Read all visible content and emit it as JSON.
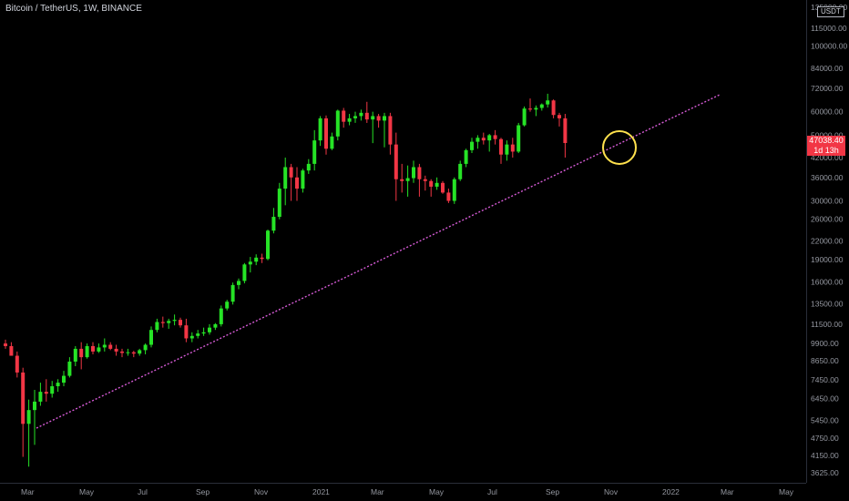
{
  "header": {
    "symbol": "Bitcoin / TetherUS, 1W, BINANCE"
  },
  "price_scale": {
    "currency": "USDT",
    "last_price": "47038.40",
    "countdown": "1d 13h"
  },
  "colors": {
    "up": "#26e326",
    "down": "#f23645",
    "trendline": "#d65bd6",
    "highlight_circle": "#ffe14d",
    "axis_text": "#9598a1",
    "background": "#000000"
  },
  "chart_data": {
    "type": "candlestick",
    "title": "Bitcoin / TetherUS, 1W, BINANCE",
    "y_scale": "log",
    "ylim": [
      3400,
      140000
    ],
    "yticks": [
      "135000.00",
      "115000.00",
      "100000.00",
      "84000.00",
      "72000.00",
      "60000.00",
      "50000.00",
      "42000.00",
      "36000.00",
      "30000.00",
      "26000.00",
      "22000.00",
      "19000.00",
      "16000.00",
      "13500.00",
      "11500.00",
      "9900.00",
      "8650.00",
      "7450.00",
      "6450.00",
      "5450.00",
      "4750.00",
      "4150.00",
      "3625.00"
    ],
    "x_ticks": [
      "Mar",
      "May",
      "Jul",
      "Sep",
      "Nov",
      "2021",
      "Mar",
      "May",
      "Jul",
      "Sep",
      "Nov",
      "2022",
      "Mar",
      "May"
    ],
    "candles": [
      {
        "o": 9900,
        "h": 10200,
        "l": 9500,
        "c": 9700
      },
      {
        "o": 9700,
        "h": 10000,
        "l": 9100,
        "c": 9000
      },
      {
        "o": 9000,
        "h": 9300,
        "l": 7600,
        "c": 7900
      },
      {
        "o": 7900,
        "h": 8200,
        "l": 4100,
        "c": 5300
      },
      {
        "o": 5300,
        "h": 6400,
        "l": 3800,
        "c": 5900
      },
      {
        "o": 5900,
        "h": 6900,
        "l": 4500,
        "c": 6300
      },
      {
        "o": 6300,
        "h": 7300,
        "l": 6100,
        "c": 6800
      },
      {
        "o": 6800,
        "h": 7500,
        "l": 6300,
        "c": 6700
      },
      {
        "o": 6700,
        "h": 7400,
        "l": 6500,
        "c": 7100
      },
      {
        "o": 7100,
        "h": 7500,
        "l": 6800,
        "c": 7300
      },
      {
        "o": 7300,
        "h": 8000,
        "l": 7100,
        "c": 7700
      },
      {
        "o": 7700,
        "h": 8900,
        "l": 7600,
        "c": 8600
      },
      {
        "o": 8600,
        "h": 9700,
        "l": 8300,
        "c": 9500
      },
      {
        "o": 9500,
        "h": 10000,
        "l": 8100,
        "c": 8900
      },
      {
        "o": 8900,
        "h": 9900,
        "l": 8800,
        "c": 9700
      },
      {
        "o": 9700,
        "h": 10000,
        "l": 9100,
        "c": 9300
      },
      {
        "o": 9300,
        "h": 9900,
        "l": 9200,
        "c": 9600
      },
      {
        "o": 9600,
        "h": 10300,
        "l": 9300,
        "c": 9800
      },
      {
        "o": 9800,
        "h": 10000,
        "l": 9400,
        "c": 9500
      },
      {
        "o": 9500,
        "h": 9800,
        "l": 9000,
        "c": 9300
      },
      {
        "o": 9300,
        "h": 9500,
        "l": 8900,
        "c": 9200
      },
      {
        "o": 9200,
        "h": 9500,
        "l": 9000,
        "c": 9250
      },
      {
        "o": 9250,
        "h": 9350,
        "l": 8900,
        "c": 9150
      },
      {
        "o": 9150,
        "h": 9500,
        "l": 9000,
        "c": 9400
      },
      {
        "o": 9400,
        "h": 9900,
        "l": 9100,
        "c": 9800
      },
      {
        "o": 9800,
        "h": 11300,
        "l": 9600,
        "c": 11000
      },
      {
        "o": 11000,
        "h": 12000,
        "l": 10800,
        "c": 11700
      },
      {
        "o": 11700,
        "h": 12200,
        "l": 11200,
        "c": 11600
      },
      {
        "o": 11600,
        "h": 12000,
        "l": 11100,
        "c": 11800
      },
      {
        "o": 11800,
        "h": 12400,
        "l": 11400,
        "c": 11900
      },
      {
        "o": 11900,
        "h": 12100,
        "l": 11200,
        "c": 11400
      },
      {
        "o": 11400,
        "h": 12000,
        "l": 10000,
        "c": 10300
      },
      {
        "o": 10300,
        "h": 10800,
        "l": 10000,
        "c": 10500
      },
      {
        "o": 10500,
        "h": 11000,
        "l": 10300,
        "c": 10700
      },
      {
        "o": 10700,
        "h": 11200,
        "l": 10500,
        "c": 10800
      },
      {
        "o": 10800,
        "h": 11500,
        "l": 10600,
        "c": 11200
      },
      {
        "o": 11200,
        "h": 11600,
        "l": 11000,
        "c": 11500
      },
      {
        "o": 11500,
        "h": 13300,
        "l": 11300,
        "c": 13000
      },
      {
        "o": 13000,
        "h": 13900,
        "l": 12800,
        "c": 13700
      },
      {
        "o": 13700,
        "h": 15900,
        "l": 13400,
        "c": 15600
      },
      {
        "o": 15600,
        "h": 16400,
        "l": 15100,
        "c": 16100
      },
      {
        "o": 16100,
        "h": 18500,
        "l": 15800,
        "c": 18300
      },
      {
        "o": 18300,
        "h": 19400,
        "l": 17200,
        "c": 18700
      },
      {
        "o": 18700,
        "h": 19800,
        "l": 18200,
        "c": 19300
      },
      {
        "o": 19300,
        "h": 19900,
        "l": 18500,
        "c": 19100
      },
      {
        "o": 19100,
        "h": 24000,
        "l": 18900,
        "c": 23800
      },
      {
        "o": 23800,
        "h": 28400,
        "l": 23300,
        "c": 26500
      },
      {
        "o": 26500,
        "h": 34500,
        "l": 26000,
        "c": 33000
      },
      {
        "o": 33000,
        "h": 42000,
        "l": 29000,
        "c": 39000
      },
      {
        "o": 39000,
        "h": 40000,
        "l": 30000,
        "c": 36000
      },
      {
        "o": 36000,
        "h": 39000,
        "l": 30000,
        "c": 33000
      },
      {
        "o": 33000,
        "h": 38500,
        "l": 32000,
        "c": 38000
      },
      {
        "o": 38000,
        "h": 41500,
        "l": 37000,
        "c": 40000
      },
      {
        "o": 40000,
        "h": 52000,
        "l": 38000,
        "c": 48000
      },
      {
        "o": 48000,
        "h": 58000,
        "l": 46000,
        "c": 57000
      },
      {
        "o": 57000,
        "h": 58300,
        "l": 43000,
        "c": 45000
      },
      {
        "o": 45000,
        "h": 51000,
        "l": 44500,
        "c": 49500
      },
      {
        "o": 49500,
        "h": 61000,
        "l": 48000,
        "c": 60500
      },
      {
        "o": 60500,
        "h": 61800,
        "l": 53000,
        "c": 55500
      },
      {
        "o": 55500,
        "h": 59000,
        "l": 54000,
        "c": 57000
      },
      {
        "o": 57000,
        "h": 60000,
        "l": 55000,
        "c": 58000
      },
      {
        "o": 58000,
        "h": 61000,
        "l": 56000,
        "c": 59500
      },
      {
        "o": 59500,
        "h": 64800,
        "l": 55000,
        "c": 56500
      },
      {
        "o": 56500,
        "h": 60000,
        "l": 47000,
        "c": 58000
      },
      {
        "o": 58000,
        "h": 59000,
        "l": 53000,
        "c": 56000
      },
      {
        "o": 56000,
        "h": 59500,
        "l": 45500,
        "c": 58000
      },
      {
        "o": 58000,
        "h": 59500,
        "l": 43000,
        "c": 46500
      },
      {
        "o": 46500,
        "h": 51000,
        "l": 30000,
        "c": 35500
      },
      {
        "o": 35500,
        "h": 40000,
        "l": 32000,
        "c": 35000
      },
      {
        "o": 35000,
        "h": 39500,
        "l": 31000,
        "c": 35800
      },
      {
        "o": 35800,
        "h": 41000,
        "l": 34500,
        "c": 39000
      },
      {
        "o": 39000,
        "h": 40000,
        "l": 31000,
        "c": 35500
      },
      {
        "o": 35500,
        "h": 36500,
        "l": 32500,
        "c": 35000
      },
      {
        "o": 35000,
        "h": 35500,
        "l": 31000,
        "c": 33500
      },
      {
        "o": 33500,
        "h": 36000,
        "l": 32700,
        "c": 34500
      },
      {
        "o": 34500,
        "h": 35000,
        "l": 31700,
        "c": 32000
      },
      {
        "o": 32000,
        "h": 33000,
        "l": 29500,
        "c": 30000
      },
      {
        "o": 30000,
        "h": 36000,
        "l": 29300,
        "c": 35500
      },
      {
        "o": 35500,
        "h": 41000,
        "l": 35000,
        "c": 40000
      },
      {
        "o": 40000,
        "h": 45000,
        "l": 39000,
        "c": 44500
      },
      {
        "o": 44500,
        "h": 49000,
        "l": 43500,
        "c": 47500
      },
      {
        "o": 47500,
        "h": 50000,
        "l": 45000,
        "c": 49000
      },
      {
        "o": 49000,
        "h": 51000,
        "l": 46500,
        "c": 48000
      },
      {
        "o": 48000,
        "h": 50500,
        "l": 44000,
        "c": 50000
      },
      {
        "o": 50000,
        "h": 52000,
        "l": 46500,
        "c": 48500
      },
      {
        "o": 48500,
        "h": 49000,
        "l": 40000,
        "c": 43000
      },
      {
        "o": 43000,
        "h": 48000,
        "l": 41000,
        "c": 46500
      },
      {
        "o": 46500,
        "h": 49000,
        "l": 42000,
        "c": 44000
      },
      {
        "o": 44000,
        "h": 55000,
        "l": 43500,
        "c": 54000
      },
      {
        "o": 54000,
        "h": 62500,
        "l": 53500,
        "c": 61500
      },
      {
        "o": 61500,
        "h": 66500,
        "l": 60000,
        "c": 61000
      },
      {
        "o": 61000,
        "h": 63000,
        "l": 58000,
        "c": 61800
      },
      {
        "o": 61800,
        "h": 64000,
        "l": 60500,
        "c": 63500
      },
      {
        "o": 63500,
        "h": 69000,
        "l": 62000,
        "c": 65500
      },
      {
        "o": 65500,
        "h": 66000,
        "l": 57000,
        "c": 58500
      },
      {
        "o": 58500,
        "h": 59500,
        "l": 53500,
        "c": 57000
      },
      {
        "o": 57000,
        "h": 59000,
        "l": 42000,
        "c": 47038.4
      }
    ]
  }
}
